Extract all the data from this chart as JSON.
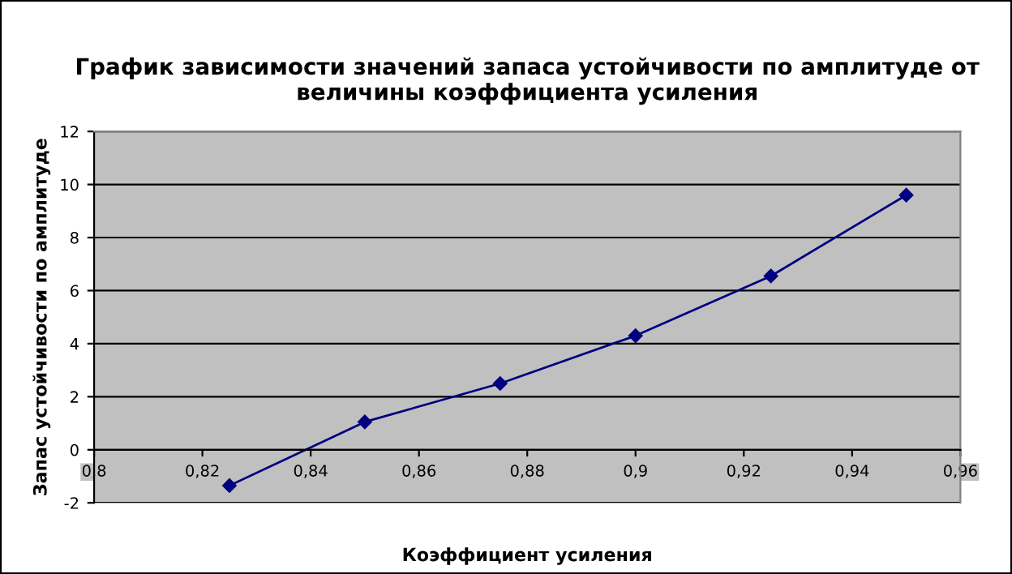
{
  "chart_data": {
    "type": "line",
    "title": "График зависимости значений запаса устойчивости по амплитуде от\nвеличины коэффициента усиления",
    "xlabel": "Коэффициент усиления",
    "ylabel": "Запас устойчивости по амплитуде",
    "x": [
      0.825,
      0.85,
      0.875,
      0.9,
      0.925,
      0.95
    ],
    "series": [
      {
        "color": "#000080",
        "values": [
          -1.35,
          1.05,
          2.5,
          4.3,
          6.55,
          9.6
        ]
      }
    ],
    "xlim": [
      0.8,
      0.96
    ],
    "xticks": [
      {
        "value": 0.8,
        "label": "0,8"
      },
      {
        "value": 0.82,
        "label": "0,82"
      },
      {
        "value": 0.84,
        "label": "0,84"
      },
      {
        "value": 0.86,
        "label": "0,86"
      },
      {
        "value": 0.88,
        "label": "0,88"
      },
      {
        "value": 0.9,
        "label": "0,9"
      },
      {
        "value": 0.92,
        "label": "0,92"
      },
      {
        "value": 0.94,
        "label": "0,94"
      },
      {
        "value": 0.96,
        "label": "0,96"
      }
    ],
    "ylim": [
      -2,
      12
    ],
    "yticks": [
      -2,
      0,
      2,
      4,
      6,
      8,
      10,
      12
    ],
    "grid": "y",
    "marker": "diamond",
    "line_style": "solid",
    "legend": false
  }
}
